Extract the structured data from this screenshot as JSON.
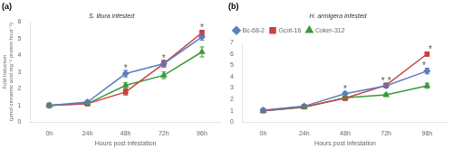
{
  "chart_data": [
    {
      "type": "line",
      "panel_label": "(a)",
      "title": "S. litura infested",
      "x_label": "Hours post infestation",
      "y_label": [
        "Fold Induction",
        "(μmol cinnamic acid mg⁻¹ protein hour⁻¹)"
      ],
      "categories": [
        "0h",
        "24h",
        "48h",
        "72h",
        "96h"
      ],
      "series": [
        {
          "name": "Bc-68-2",
          "color": "#5B7FC0",
          "marker": "diamond",
          "values": [
            1.0,
            1.2,
            2.9,
            3.5,
            5.1
          ],
          "errors": [
            0.12,
            0.1,
            0.2,
            0.2,
            0.2
          ]
        },
        {
          "name": "Gcot-16",
          "color": "#C84040",
          "marker": "square",
          "values": [
            1.0,
            1.1,
            1.8,
            3.5,
            5.35
          ],
          "errors": [
            0.1,
            0.12,
            0.18,
            0.2,
            0.15
          ]
        },
        {
          "name": "Coker-312",
          "color": "#3A9A3A",
          "marker": "triangle",
          "values": [
            1.0,
            1.1,
            2.2,
            2.8,
            4.2
          ],
          "errors": [
            0.1,
            0.1,
            0.15,
            0.2,
            0.3
          ]
        }
      ],
      "ylim": [
        0,
        6
      ],
      "yticks": [
        0,
        1,
        2,
        3,
        4,
        5,
        6
      ],
      "grid": false,
      "annotations": [
        {
          "text": "*",
          "category": "48h"
        },
        {
          "text": "*",
          "category": "72h"
        },
        {
          "text": "*",
          "category": "96h"
        }
      ]
    },
    {
      "type": "line",
      "panel_label": "(b)",
      "title": "H. armigera infested",
      "x_label": "Hours post infestation",
      "categories": [
        "0h",
        "24h",
        "48h",
        "72h",
        "96h"
      ],
      "series": [
        {
          "name": "Bc-68-2",
          "color": "#5B7FC0",
          "marker": "diamond",
          "values": [
            1.05,
            1.4,
            2.5,
            3.2,
            4.5
          ],
          "errors": [
            0.15,
            0.12,
            0.2,
            0.2,
            0.25
          ]
        },
        {
          "name": "Gcot-16",
          "color": "#C84040",
          "marker": "square",
          "values": [
            1.0,
            1.35,
            2.1,
            3.25,
            6.0
          ],
          "errors": [
            0.1,
            0.1,
            0.18,
            0.15,
            0.18
          ]
        },
        {
          "name": "Coker-312",
          "color": "#3A9A3A",
          "marker": "triangle",
          "values": [
            1.0,
            1.3,
            2.15,
            2.4,
            3.2
          ],
          "errors": [
            0.1,
            0.1,
            0.12,
            0.15,
            0.22
          ]
        }
      ],
      "ylim": [
        0,
        7
      ],
      "yticks": [
        0,
        1,
        2,
        3,
        4,
        5,
        6,
        7
      ],
      "grid": false,
      "legend": "upper left",
      "annotations": [
        {
          "text": "*",
          "category": "48h"
        },
        {
          "text": "*",
          "category": "72h",
          "series": "Bc-68-2"
        },
        {
          "text": "*",
          "category": "72h",
          "series": "Gcot-16"
        },
        {
          "text": "*",
          "category": "96h",
          "series": "Bc-68-2"
        },
        {
          "text": "*",
          "category": "96h",
          "series": "Gcot-16"
        }
      ]
    }
  ]
}
